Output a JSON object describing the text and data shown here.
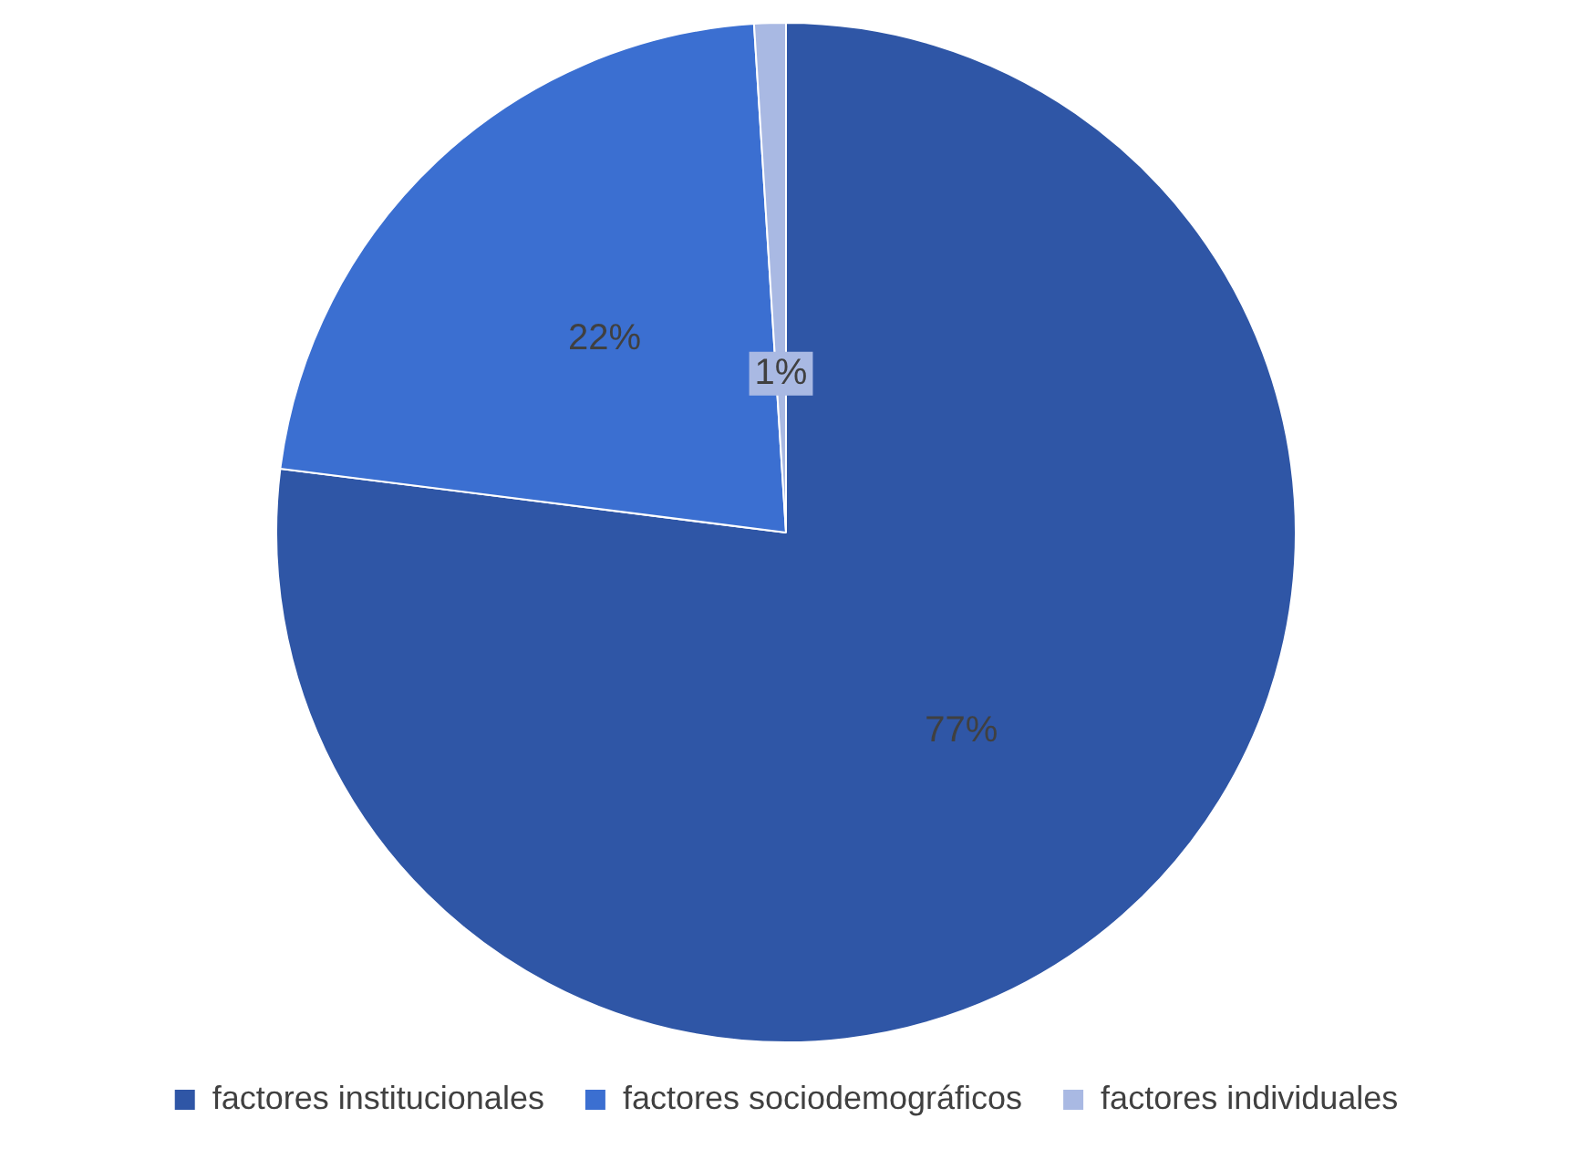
{
  "chart_data": {
    "type": "pie",
    "categories": [
      "factores institucionales",
      "factores sociodemográficos",
      "factores individuales"
    ],
    "values": [
      77,
      22,
      1
    ],
    "colors": [
      "#2f56a6",
      "#3b6fd1",
      "#a9b9e3"
    ],
    "value_labels": [
      "77%",
      "22%",
      "1%"
    ],
    "legend": "bottom"
  }
}
